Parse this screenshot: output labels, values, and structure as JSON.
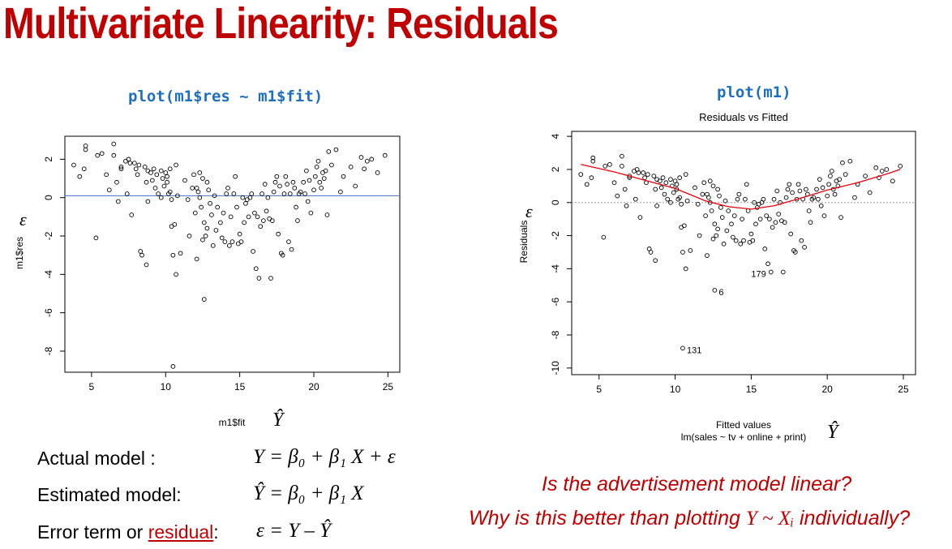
{
  "slide_title": "Multivariate Linearity: Residuals",
  "left_code": "plot(m1$res ~ m1$fit)",
  "right_code": "plot(m1)",
  "epsilon_symbol": "ε",
  "yhat_symbol": "Ŷ",
  "model_lines": [
    {
      "label": "Actual model :",
      "equation": "Y = β₀ + β₁ X + ε"
    },
    {
      "label": "Estimated model:",
      "equation": "Ŷ = β₀ + β₁ X"
    },
    {
      "label_prefix": "Error term or ",
      "label_link": "residual",
      "label_suffix": ":",
      "equation": "ε = Y – Ŷ"
    }
  ],
  "questions": {
    "q1": "Is the advertisement model linear?",
    "q2_before": "Why is this better than plotting ",
    "q2_math": "Y ~ Xᵢ",
    "q2_after": " individually?"
  },
  "colors": {
    "title": "#c00000",
    "code": "#1f6fbf",
    "hline": "#4472c4",
    "smooth": "#e8000b"
  },
  "chart_data": [
    {
      "type": "scatter",
      "title": "",
      "xlabel": "m1$fit",
      "ylabel": "m1$res",
      "xlim": [
        3.2,
        25.8
      ],
      "ylim": [
        -9.1,
        3.2
      ],
      "xticks": [
        5,
        10,
        15,
        20,
        25
      ],
      "yticks": [
        2,
        0,
        -2,
        -4,
        -6,
        -8
      ],
      "reference_line": {
        "y": 0.1
      },
      "points": [
        [
          3.8,
          1.7
        ],
        [
          4.2,
          1.1
        ],
        [
          4.5,
          1.5
        ],
        [
          4.6,
          2.7
        ],
        [
          4.6,
          2.5
        ],
        [
          5.3,
          -2.1
        ],
        [
          5.4,
          2.2
        ],
        [
          5.7,
          2.3
        ],
        [
          6.0,
          1.2
        ],
        [
          6.2,
          0.4
        ],
        [
          6.5,
          2.8
        ],
        [
          6.5,
          2.2
        ],
        [
          6.7,
          0.8
        ],
        [
          6.8,
          -0.2
        ],
        [
          7.0,
          1.6
        ],
        [
          7.0,
          1.5
        ],
        [
          7.3,
          1.9
        ],
        [
          7.4,
          0.2
        ],
        [
          7.5,
          2.0
        ],
        [
          7.6,
          1.8
        ],
        [
          7.7,
          -0.9
        ],
        [
          7.9,
          1.8
        ],
        [
          8.0,
          1.5
        ],
        [
          8.1,
          1.2
        ],
        [
          8.2,
          1.7
        ],
        [
          8.3,
          -2.8
        ],
        [
          8.4,
          -3.0
        ],
        [
          8.6,
          1.6
        ],
        [
          8.7,
          0.8
        ],
        [
          8.7,
          -3.5
        ],
        [
          8.8,
          1.4
        ],
        [
          8.8,
          -0.2
        ],
        [
          9.0,
          1.3
        ],
        [
          9.1,
          0.9
        ],
        [
          9.2,
          1.5
        ],
        [
          9.3,
          0.5
        ],
        [
          9.4,
          1.2
        ],
        [
          9.5,
          0.2
        ],
        [
          9.7,
          1.4
        ],
        [
          9.7,
          0.0
        ],
        [
          9.8,
          1.0
        ],
        [
          9.9,
          0.6
        ],
        [
          10.0,
          1.3
        ],
        [
          10.1,
          1.1
        ],
        [
          10.1,
          0.8
        ],
        [
          10.2,
          0.2
        ],
        [
          10.3,
          1.5
        ],
        [
          10.3,
          0.3
        ],
        [
          10.4,
          -0.1
        ],
        [
          10.4,
          -1.5
        ],
        [
          10.5,
          -3.0
        ],
        [
          10.5,
          -8.8
        ],
        [
          10.6,
          -1.4
        ],
        [
          10.7,
          -4.0
        ],
        [
          10.7,
          1.7
        ],
        [
          10.8,
          0.1
        ],
        [
          11.0,
          -2.9
        ],
        [
          11.3,
          0.9
        ],
        [
          11.5,
          -0.1
        ],
        [
          11.6,
          -2.0
        ],
        [
          11.8,
          0.5
        ],
        [
          11.9,
          1.2
        ],
        [
          12.0,
          -0.8
        ],
        [
          12.1,
          -3.2
        ],
        [
          12.1,
          0.5
        ],
        [
          12.2,
          0.3
        ],
        [
          12.3,
          1.3
        ],
        [
          12.3,
          0.0
        ],
        [
          12.4,
          -0.5
        ],
        [
          12.5,
          1.0
        ],
        [
          12.5,
          -2.2
        ],
        [
          12.6,
          -5.3
        ],
        [
          12.6,
          -1.3
        ],
        [
          12.7,
          -2.0
        ],
        [
          12.8,
          -1.6
        ],
        [
          12.8,
          0.8
        ],
        [
          12.9,
          0.4
        ],
        [
          13.0,
          -0.3
        ],
        [
          13.1,
          -0.9
        ],
        [
          13.2,
          -2.5
        ],
        [
          13.3,
          0.1
        ],
        [
          13.4,
          -1.7
        ],
        [
          13.5,
          -0.5
        ],
        [
          13.7,
          -1.3
        ],
        [
          13.8,
          -2.1
        ],
        [
          13.9,
          -0.8
        ],
        [
          14.0,
          -2.3
        ],
        [
          14.1,
          0.2
        ],
        [
          14.2,
          0.5
        ],
        [
          14.3,
          -2.5
        ],
        [
          14.4,
          -1.0
        ],
        [
          14.5,
          -2.3
        ],
        [
          14.6,
          0.2
        ],
        [
          14.7,
          1.1
        ],
        [
          14.8,
          -0.5
        ],
        [
          14.9,
          -2.4
        ],
        [
          15.0,
          -1.9
        ],
        [
          15.1,
          -2.3
        ],
        [
          15.2,
          0.0
        ],
        [
          15.3,
          -1.3
        ],
        [
          15.4,
          -0.3
        ],
        [
          15.5,
          -0.1
        ],
        [
          15.6,
          -1.0
        ],
        [
          15.7,
          0.0
        ],
        [
          15.8,
          0.2
        ],
        [
          15.9,
          -2.8
        ],
        [
          16.0,
          -0.8
        ],
        [
          16.1,
          -3.7
        ],
        [
          16.2,
          -1.0
        ],
        [
          16.3,
          -4.2
        ],
        [
          16.4,
          -1.5
        ],
        [
          16.5,
          0.2
        ],
        [
          16.6,
          -1.2
        ],
        [
          16.7,
          0.7
        ],
        [
          16.8,
          -0.7
        ],
        [
          16.9,
          0.0
        ],
        [
          17.0,
          -1.1
        ],
        [
          17.1,
          -4.2
        ],
        [
          17.2,
          -1.2
        ],
        [
          17.3,
          0.3
        ],
        [
          17.4,
          0.8
        ],
        [
          17.5,
          1.1
        ],
        [
          17.6,
          -1.9
        ],
        [
          17.7,
          0.6
        ],
        [
          17.8,
          -2.9
        ],
        [
          17.9,
          -3.0
        ],
        [
          18.0,
          0.2
        ],
        [
          18.1,
          1.1
        ],
        [
          18.2,
          0.7
        ],
        [
          18.3,
          -2.3
        ],
        [
          18.4,
          0.2
        ],
        [
          18.5,
          -2.7
        ],
        [
          18.6,
          0.8
        ],
        [
          18.7,
          0.5
        ],
        [
          18.8,
          -0.5
        ],
        [
          18.9,
          -1.2
        ],
        [
          19.0,
          0.2
        ],
        [
          19.1,
          0.3
        ],
        [
          19.3,
          0.8
        ],
        [
          19.4,
          0.2
        ],
        [
          19.5,
          1.4
        ],
        [
          19.6,
          -0.2
        ],
        [
          19.7,
          0.9
        ],
        [
          19.8,
          -0.8
        ],
        [
          20.0,
          0.4
        ],
        [
          20.1,
          1.1
        ],
        [
          20.2,
          1.6
        ],
        [
          20.3,
          1.9
        ],
        [
          20.4,
          0.8
        ],
        [
          20.5,
          0.5
        ],
        [
          20.6,
          1.3
        ],
        [
          20.7,
          1.0
        ],
        [
          20.8,
          1.4
        ],
        [
          20.9,
          -0.9
        ],
        [
          21.0,
          2.4
        ],
        [
          21.2,
          1.7
        ],
        [
          21.5,
          2.5
        ],
        [
          21.8,
          0.3
        ],
        [
          22.0,
          1.1
        ],
        [
          22.5,
          1.6
        ],
        [
          22.8,
          0.6
        ],
        [
          23.2,
          2.1
        ],
        [
          23.4,
          1.5
        ],
        [
          23.6,
          1.9
        ],
        [
          23.9,
          2.0
        ],
        [
          24.3,
          1.3
        ],
        [
          24.8,
          2.2
        ]
      ]
    },
    {
      "type": "scatter",
      "title": "Residuals vs Fitted",
      "xlabel": "Fitted values",
      "xlabel2": "lm(sales ~ tv + online + print)",
      "ylabel": "Residuals",
      "xlim": [
        3.2,
        25.8
      ],
      "ylim": [
        -10.4,
        4.3
      ],
      "xticks": [
        5,
        10,
        15,
        20,
        25
      ],
      "yticks": [
        4,
        2,
        0,
        -2,
        -4,
        -6,
        -8,
        -10
      ],
      "reference_line": {
        "y": 0,
        "style": "dotted"
      },
      "annotations": [
        {
          "x": 10.5,
          "y": -8.8,
          "text": "131"
        },
        {
          "x": 12.6,
          "y": -5.3,
          "text": "6"
        },
        {
          "x": 16.3,
          "y": -4.2,
          "text": "179"
        }
      ],
      "smooth_curve": [
        [
          3.8,
          2.3
        ],
        [
          6,
          1.85
        ],
        [
          8,
          1.35
        ],
        [
          10,
          0.85
        ],
        [
          12,
          0.1
        ],
        [
          13.5,
          -0.25
        ],
        [
          15,
          -0.4
        ],
        [
          16.5,
          -0.2
        ],
        [
          18,
          0.2
        ],
        [
          20,
          0.75
        ],
        [
          22,
          1.2
        ],
        [
          24,
          1.75
        ],
        [
          24.8,
          2.0
        ]
      ],
      "points": [
        [
          3.8,
          1.7
        ],
        [
          4.2,
          1.1
        ],
        [
          4.5,
          1.5
        ],
        [
          4.6,
          2.7
        ],
        [
          4.6,
          2.5
        ],
        [
          5.3,
          -2.1
        ],
        [
          5.4,
          2.2
        ],
        [
          5.7,
          2.3
        ],
        [
          6.0,
          1.2
        ],
        [
          6.2,
          0.4
        ],
        [
          6.5,
          2.8
        ],
        [
          6.5,
          2.2
        ],
        [
          6.7,
          0.8
        ],
        [
          6.8,
          -0.2
        ],
        [
          7.0,
          1.6
        ],
        [
          7.0,
          1.5
        ],
        [
          7.3,
          1.9
        ],
        [
          7.4,
          0.2
        ],
        [
          7.5,
          2.0
        ],
        [
          7.6,
          1.8
        ],
        [
          7.7,
          -0.9
        ],
        [
          7.9,
          1.8
        ],
        [
          8.0,
          1.5
        ],
        [
          8.1,
          1.2
        ],
        [
          8.2,
          1.7
        ],
        [
          8.3,
          -2.8
        ],
        [
          8.4,
          -3.0
        ],
        [
          8.6,
          1.6
        ],
        [
          8.7,
          0.8
        ],
        [
          8.7,
          -3.5
        ],
        [
          8.8,
          1.4
        ],
        [
          8.8,
          -0.2
        ],
        [
          9.0,
          1.3
        ],
        [
          9.1,
          0.9
        ],
        [
          9.2,
          1.5
        ],
        [
          9.3,
          0.5
        ],
        [
          9.4,
          1.2
        ],
        [
          9.5,
          0.2
        ],
        [
          9.7,
          1.4
        ],
        [
          9.7,
          0.0
        ],
        [
          9.8,
          1.0
        ],
        [
          9.9,
          0.6
        ],
        [
          10.0,
          1.3
        ],
        [
          10.1,
          1.1
        ],
        [
          10.1,
          0.8
        ],
        [
          10.2,
          0.2
        ],
        [
          10.3,
          1.5
        ],
        [
          10.3,
          0.3
        ],
        [
          10.4,
          -0.1
        ],
        [
          10.4,
          -1.5
        ],
        [
          10.5,
          -3.0
        ],
        [
          10.5,
          -8.8
        ],
        [
          10.6,
          -1.4
        ],
        [
          10.7,
          -4.0
        ],
        [
          10.7,
          1.7
        ],
        [
          10.8,
          0.1
        ],
        [
          11.0,
          -2.9
        ],
        [
          11.3,
          0.9
        ],
        [
          11.5,
          -0.1
        ],
        [
          11.6,
          -2.0
        ],
        [
          11.8,
          0.5
        ],
        [
          11.9,
          1.2
        ],
        [
          12.0,
          -0.8
        ],
        [
          12.1,
          -3.2
        ],
        [
          12.1,
          0.5
        ],
        [
          12.2,
          0.3
        ],
        [
          12.3,
          1.3
        ],
        [
          12.3,
          0.0
        ],
        [
          12.4,
          -0.5
        ],
        [
          12.5,
          1.0
        ],
        [
          12.5,
          -2.2
        ],
        [
          12.6,
          -5.3
        ],
        [
          12.6,
          -1.3
        ],
        [
          12.7,
          -2.0
        ],
        [
          12.8,
          -1.6
        ],
        [
          12.8,
          0.8
        ],
        [
          12.9,
          0.4
        ],
        [
          13.0,
          -0.3
        ],
        [
          13.1,
          -0.9
        ],
        [
          13.2,
          -2.5
        ],
        [
          13.3,
          0.1
        ],
        [
          13.4,
          -1.7
        ],
        [
          13.5,
          -0.5
        ],
        [
          13.7,
          -1.3
        ],
        [
          13.8,
          -2.1
        ],
        [
          13.9,
          -0.8
        ],
        [
          14.0,
          -2.3
        ],
        [
          14.1,
          0.2
        ],
        [
          14.2,
          0.5
        ],
        [
          14.3,
          -2.5
        ],
        [
          14.4,
          -1.0
        ],
        [
          14.5,
          -2.3
        ],
        [
          14.6,
          0.2
        ],
        [
          14.7,
          1.1
        ],
        [
          14.8,
          -0.5
        ],
        [
          14.9,
          -2.4
        ],
        [
          15.0,
          -1.9
        ],
        [
          15.1,
          -2.3
        ],
        [
          15.2,
          0.0
        ],
        [
          15.3,
          -1.3
        ],
        [
          15.4,
          -0.3
        ],
        [
          15.5,
          -0.1
        ],
        [
          15.6,
          -1.0
        ],
        [
          15.7,
          0.0
        ],
        [
          15.8,
          0.2
        ],
        [
          15.9,
          -2.8
        ],
        [
          16.0,
          -0.8
        ],
        [
          16.1,
          -3.7
        ],
        [
          16.2,
          -1.0
        ],
        [
          16.3,
          -4.2
        ],
        [
          16.4,
          -1.5
        ],
        [
          16.5,
          0.2
        ],
        [
          16.6,
          -1.2
        ],
        [
          16.7,
          0.7
        ],
        [
          16.8,
          -0.7
        ],
        [
          16.9,
          0.0
        ],
        [
          17.0,
          -1.1
        ],
        [
          17.1,
          -4.2
        ],
        [
          17.2,
          -1.2
        ],
        [
          17.3,
          0.3
        ],
        [
          17.4,
          0.8
        ],
        [
          17.5,
          1.1
        ],
        [
          17.6,
          -1.9
        ],
        [
          17.7,
          0.6
        ],
        [
          17.8,
          -2.9
        ],
        [
          17.9,
          -3.0
        ],
        [
          18.0,
          0.2
        ],
        [
          18.1,
          1.1
        ],
        [
          18.2,
          0.7
        ],
        [
          18.3,
          -2.3
        ],
        [
          18.4,
          0.2
        ],
        [
          18.5,
          -2.7
        ],
        [
          18.6,
          0.8
        ],
        [
          18.7,
          0.5
        ],
        [
          18.8,
          -0.5
        ],
        [
          18.9,
          -1.2
        ],
        [
          19.0,
          0.2
        ],
        [
          19.1,
          0.3
        ],
        [
          19.3,
          0.8
        ],
        [
          19.4,
          0.2
        ],
        [
          19.5,
          1.4
        ],
        [
          19.6,
          -0.2
        ],
        [
          19.7,
          0.9
        ],
        [
          19.8,
          -0.8
        ],
        [
          20.0,
          0.4
        ],
        [
          20.1,
          1.1
        ],
        [
          20.2,
          1.6
        ],
        [
          20.3,
          1.9
        ],
        [
          20.4,
          0.8
        ],
        [
          20.5,
          0.5
        ],
        [
          20.6,
          1.3
        ],
        [
          20.7,
          1.0
        ],
        [
          20.8,
          1.4
        ],
        [
          20.9,
          -0.9
        ],
        [
          21.0,
          2.4
        ],
        [
          21.2,
          1.7
        ],
        [
          21.5,
          2.5
        ],
        [
          21.8,
          0.3
        ],
        [
          22.0,
          1.1
        ],
        [
          22.5,
          1.6
        ],
        [
          22.8,
          0.6
        ],
        [
          23.2,
          2.1
        ],
        [
          23.4,
          1.5
        ],
        [
          23.6,
          1.9
        ],
        [
          23.9,
          2.0
        ],
        [
          24.3,
          1.3
        ],
        [
          24.8,
          2.2
        ]
      ]
    }
  ]
}
